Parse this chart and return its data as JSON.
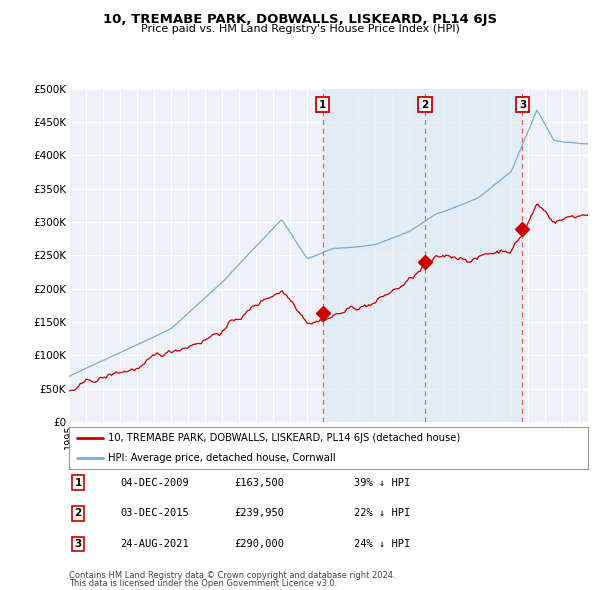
{
  "title": "10, TREMABE PARK, DOBWALLS, LISKEARD, PL14 6JS",
  "subtitle": "Price paid vs. HM Land Registry's House Price Index (HPI)",
  "ylim": [
    0,
    500000
  ],
  "yticks": [
    0,
    50000,
    100000,
    150000,
    200000,
    250000,
    300000,
    350000,
    400000,
    450000,
    500000
  ],
  "ytick_labels": [
    "£0",
    "£50K",
    "£100K",
    "£150K",
    "£200K",
    "£250K",
    "£300K",
    "£350K",
    "£400K",
    "£450K",
    "£500K"
  ],
  "hpi_color": "#7aadd4",
  "hpi_fill_color": "#ddeaf5",
  "price_color": "#cc0000",
  "dashed_line_color": "#dd6666",
  "background_color": "#ffffff",
  "plot_bg_color": "#eef2f8",
  "grid_color": "#ffffff",
  "sales": [
    {
      "date_num": 2009.92,
      "price": 163500,
      "label": "1"
    },
    {
      "date_num": 2015.92,
      "price": 239950,
      "label": "2"
    },
    {
      "date_num": 2021.65,
      "price": 290000,
      "label": "3"
    }
  ],
  "legend_price_label": "10, TREMABE PARK, DOBWALLS, LISKEARD, PL14 6JS (detached house)",
  "legend_hpi_label": "HPI: Average price, detached house, Cornwall",
  "table_rows": [
    {
      "num": "1",
      "date": "04-DEC-2009",
      "price": "£163,500",
      "note": "39% ↓ HPI"
    },
    {
      "num": "2",
      "date": "03-DEC-2015",
      "price": "£239,950",
      "note": "22% ↓ HPI"
    },
    {
      "num": "3",
      "date": "24-AUG-2021",
      "price": "£290,000",
      "note": "24% ↓ HPI"
    }
  ],
  "footnote1": "Contains HM Land Registry data © Crown copyright and database right 2024.",
  "footnote2": "This data is licensed under the Open Government Licence v3.0.",
  "xmin": 1995.0,
  "xmax": 2025.5
}
